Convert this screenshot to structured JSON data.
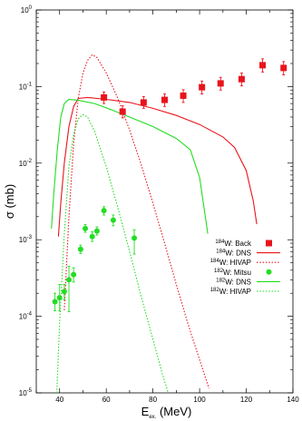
{
  "chart_data": {
    "type": "scatter",
    "title": "",
    "xlabel": "E",
    "xlabel_sub": "ex.",
    "xlabel_unit": " (MeV)",
    "ylabel": "σ (mb)",
    "x_range": [
      30,
      140
    ],
    "y_range": [
      1e-05,
      1
    ],
    "y_scale": "log",
    "grid": false,
    "legend_position": "lower-right",
    "x_ticks": [
      {
        "value": 40,
        "label": "40"
      },
      {
        "value": 60,
        "label": "60"
      },
      {
        "value": 80,
        "label": "80"
      },
      {
        "value": 100,
        "label": "100"
      },
      {
        "value": 120,
        "label": "120"
      },
      {
        "value": 140,
        "label": "140"
      }
    ],
    "y_ticks": [
      {
        "value": 1,
        "base": "10",
        "exp": "0"
      },
      {
        "value": 0.1,
        "base": "10",
        "exp": "-1"
      },
      {
        "value": 0.01,
        "base": "10",
        "exp": "-2"
      },
      {
        "value": 0.001,
        "base": "10",
        "exp": "-3"
      },
      {
        "value": 0.0001,
        "base": "10",
        "exp": "-4"
      },
      {
        "value": 1e-05,
        "base": "10",
        "exp": "-5"
      }
    ],
    "series": [
      {
        "name": "W: Back",
        "isotope": "184",
        "kind": "points",
        "marker": "square",
        "color": "#e8141c",
        "dash": "",
        "points": [
          {
            "x": 59,
            "y": 0.072,
            "ylo": 0.06,
            "yhi": 0.085
          },
          {
            "x": 67,
            "y": 0.047,
            "ylo": 0.039,
            "yhi": 0.056
          },
          {
            "x": 76,
            "y": 0.062,
            "ylo": 0.052,
            "yhi": 0.074
          },
          {
            "x": 85,
            "y": 0.067,
            "ylo": 0.055,
            "yhi": 0.08
          },
          {
            "x": 93,
            "y": 0.076,
            "ylo": 0.062,
            "yhi": 0.091
          },
          {
            "x": 101,
            "y": 0.098,
            "ylo": 0.08,
            "yhi": 0.118
          },
          {
            "x": 109,
            "y": 0.11,
            "ylo": 0.09,
            "yhi": 0.132
          },
          {
            "x": 118,
            "y": 0.125,
            "ylo": 0.102,
            "yhi": 0.15
          },
          {
            "x": 127,
            "y": 0.19,
            "ylo": 0.155,
            "yhi": 0.23
          },
          {
            "x": 136,
            "y": 0.175,
            "ylo": 0.142,
            "yhi": 0.212
          }
        ]
      },
      {
        "name": "W: DNS",
        "isotope": "184",
        "kind": "line",
        "marker": "",
        "color": "#e8141c",
        "dash": "",
        "points": [
          {
            "x": 39.5,
            "y": 0.0011
          },
          {
            "x": 40.5,
            "y": 0.003
          },
          {
            "x": 42,
            "y": 0.01
          },
          {
            "x": 44,
            "y": 0.03
          },
          {
            "x": 46,
            "y": 0.055
          },
          {
            "x": 48,
            "y": 0.07
          },
          {
            "x": 52,
            "y": 0.072
          },
          {
            "x": 60,
            "y": 0.068
          },
          {
            "x": 70,
            "y": 0.062
          },
          {
            "x": 80,
            "y": 0.052
          },
          {
            "x": 90,
            "y": 0.042
          },
          {
            "x": 100,
            "y": 0.032
          },
          {
            "x": 110,
            "y": 0.022
          },
          {
            "x": 115,
            "y": 0.016
          },
          {
            "x": 120,
            "y": 0.008
          },
          {
            "x": 123,
            "y": 0.0032
          },
          {
            "x": 124.5,
            "y": 0.0016
          }
        ]
      },
      {
        "name": "W: HIVAP",
        "isotope": "184",
        "kind": "line",
        "marker": "",
        "color": "#e8141c",
        "dash": "1.5 1.8",
        "points": [
          {
            "x": 42,
            "y": 0.00012
          },
          {
            "x": 44,
            "y": 0.002
          },
          {
            "x": 46,
            "y": 0.018
          },
          {
            "x": 48,
            "y": 0.07
          },
          {
            "x": 50,
            "y": 0.15
          },
          {
            "x": 52,
            "y": 0.22
          },
          {
            "x": 54,
            "y": 0.26
          },
          {
            "x": 56,
            "y": 0.24
          },
          {
            "x": 60,
            "y": 0.15
          },
          {
            "x": 65,
            "y": 0.07
          },
          {
            "x": 70,
            "y": 0.027
          },
          {
            "x": 75,
            "y": 0.0095
          },
          {
            "x": 80,
            "y": 0.003
          },
          {
            "x": 85,
            "y": 0.0009
          },
          {
            "x": 90,
            "y": 0.00026
          },
          {
            "x": 95,
            "y": 8e-05
          },
          {
            "x": 100,
            "y": 2.7e-05
          },
          {
            "x": 104,
            "y": 1.15e-05
          }
        ]
      },
      {
        "name": "W: Mitsu",
        "isotope": "182",
        "kind": "points",
        "marker": "circle",
        "color": "#22dd22",
        "dash": "",
        "points": [
          {
            "x": 38,
            "y": 0.000155,
            "ylo": 0.000118,
            "yhi": 0.0002
          },
          {
            "x": 40,
            "y": 0.000175,
            "ylo": 0.000118,
            "yhi": 0.00026
          },
          {
            "x": 42,
            "y": 0.00021,
            "ylo": 0.000165,
            "yhi": 0.00026
          },
          {
            "x": 44,
            "y": 0.0003,
            "ylo": 0.000115,
            "yhi": 0.00045
          },
          {
            "x": 46,
            "y": 0.00035,
            "ylo": 0.00028,
            "yhi": 0.00043
          },
          {
            "x": 49,
            "y": 0.00075,
            "ylo": 0.00066,
            "yhi": 0.00085
          },
          {
            "x": 51,
            "y": 0.0014,
            "ylo": 0.00125,
            "yhi": 0.00158
          },
          {
            "x": 54,
            "y": 0.0011,
            "ylo": 0.00095,
            "yhi": 0.00127
          },
          {
            "x": 56,
            "y": 0.0013,
            "ylo": 0.00115,
            "yhi": 0.00147
          },
          {
            "x": 59,
            "y": 0.0024,
            "ylo": 0.0021,
            "yhi": 0.0027
          },
          {
            "x": 63,
            "y": 0.0018,
            "ylo": 0.00152,
            "yhi": 0.0021
          },
          {
            "x": 72,
            "y": 0.00105,
            "ylo": 0.00065,
            "yhi": 0.00135
          }
        ]
      },
      {
        "name": "W: DNS",
        "isotope": "182",
        "kind": "line",
        "marker": "",
        "color": "#22dd22",
        "dash": "",
        "points": [
          {
            "x": 36.5,
            "y": 0.0014
          },
          {
            "x": 37.5,
            "y": 0.004
          },
          {
            "x": 39,
            "y": 0.015
          },
          {
            "x": 40.5,
            "y": 0.04
          },
          {
            "x": 42,
            "y": 0.06
          },
          {
            "x": 44,
            "y": 0.068
          },
          {
            "x": 48,
            "y": 0.066
          },
          {
            "x": 55,
            "y": 0.06
          },
          {
            "x": 62,
            "y": 0.05
          },
          {
            "x": 70,
            "y": 0.04
          },
          {
            "x": 80,
            "y": 0.03
          },
          {
            "x": 90,
            "y": 0.021
          },
          {
            "x": 96,
            "y": 0.015
          },
          {
            "x": 100,
            "y": 0.0065
          },
          {
            "x": 102,
            "y": 0.0025
          },
          {
            "x": 103.5,
            "y": 0.0012
          }
        ]
      },
      {
        "name": "W: HIVAP",
        "isotope": "182",
        "kind": "line",
        "marker": "",
        "color": "#22dd22",
        "dash": "1.5 1.8",
        "points": [
          {
            "x": 38.8,
            "y": 1e-05
          },
          {
            "x": 40,
            "y": 8e-05
          },
          {
            "x": 42,
            "y": 0.0012
          },
          {
            "x": 44,
            "y": 0.009
          },
          {
            "x": 46,
            "y": 0.024
          },
          {
            "x": 48,
            "y": 0.038
          },
          {
            "x": 50,
            "y": 0.043
          },
          {
            "x": 52,
            "y": 0.04
          },
          {
            "x": 55,
            "y": 0.026
          },
          {
            "x": 60,
            "y": 0.009
          },
          {
            "x": 65,
            "y": 0.0026
          },
          {
            "x": 70,
            "y": 0.0007
          },
          {
            "x": 75,
            "y": 0.00018
          },
          {
            "x": 80,
            "y": 5e-05
          },
          {
            "x": 84,
            "y": 1.8e-05
          },
          {
            "x": 86.5,
            "y": 1e-05
          }
        ]
      }
    ]
  }
}
